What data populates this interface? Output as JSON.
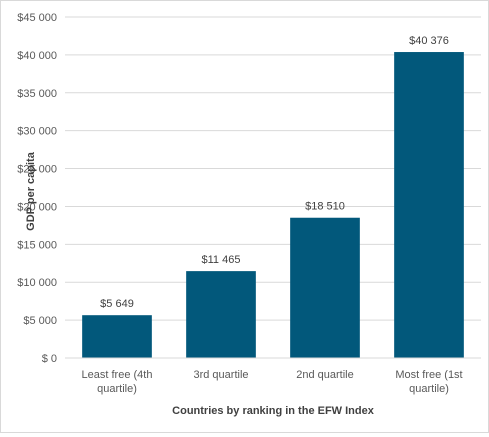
{
  "chart_data": {
    "type": "bar",
    "title": "",
    "xlabel": "Countries by ranking in the EFW Index",
    "ylabel": "GDP per capita",
    "categories": [
      [
        "Least free (4th",
        "quartile)"
      ],
      [
        "3rd quartile"
      ],
      [
        "2nd quartile"
      ],
      [
        "Most free (1st",
        "quartile)"
      ]
    ],
    "values": [
      5649,
      11465,
      18510,
      40376
    ],
    "data_labels": [
      "$5 649",
      "$11 465",
      "$18 510",
      "$40 376"
    ],
    "ylim": [
      0,
      45000
    ],
    "yticks": [
      0,
      5000,
      10000,
      15000,
      20000,
      25000,
      30000,
      35000,
      40000,
      45000
    ],
    "ytick_labels": [
      "$ 0",
      "$5 000",
      "$10 000",
      "$15 000",
      "$20 000",
      "$25 000",
      "$30 000",
      "$35 000",
      "$40 000",
      "$45 000"
    ],
    "grid": true,
    "legend": "none",
    "colors": {
      "bar": "#02587b",
      "grid": "#d9d9d9"
    }
  }
}
